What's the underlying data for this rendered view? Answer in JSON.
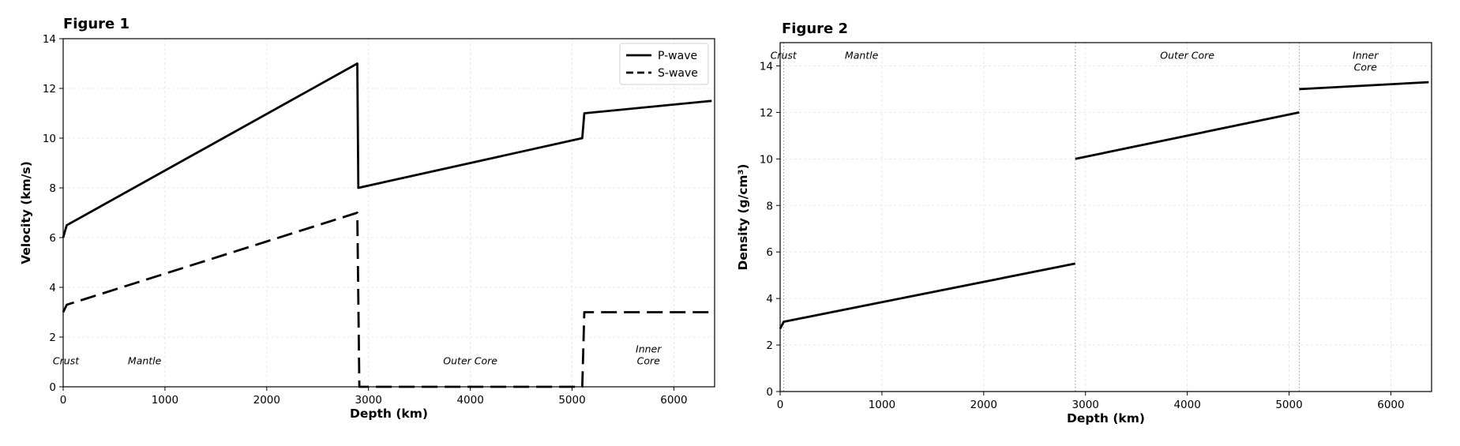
{
  "chart_data": [
    {
      "type": "line",
      "figure_title": "Figure 1",
      "xlabel": "Depth (km)",
      "ylabel": "Velocity (km/s)",
      "xlim": [
        0,
        6400
      ],
      "ylim": [
        0,
        14
      ],
      "xticks": [
        0,
        1000,
        2000,
        3000,
        4000,
        5000,
        6000
      ],
      "yticks": [
        0,
        2,
        4,
        6,
        8,
        10,
        12,
        14
      ],
      "grid": true,
      "legend_position": "top-right",
      "legend": [
        "P-wave",
        "S-wave"
      ],
      "series": [
        {
          "name": "P-wave",
          "style": "solid",
          "color": "#000000",
          "segments": [
            [
              [
                0,
                6.0
              ],
              [
                35,
                6.5
              ],
              [
                2890,
                13.0
              ],
              [
                2900,
                8.0
              ],
              [
                5100,
                10.0
              ],
              [
                5120,
                11.0
              ],
              [
                6371,
                11.5
              ]
            ]
          ]
        },
        {
          "name": "S-wave",
          "style": "dashed",
          "color": "#000000",
          "segments": [
            [
              [
                0,
                3.0
              ],
              [
                35,
                3.3
              ],
              [
                2890,
                7.0
              ],
              [
                2910,
                0.0
              ],
              [
                5100,
                0.0
              ],
              [
                5120,
                3.0
              ],
              [
                6371,
                3.0
              ]
            ]
          ]
        }
      ],
      "regions": [
        {
          "label": "Crust",
          "x": 15,
          "y": 0.9
        },
        {
          "label": "Mantle",
          "x": 800,
          "y": 0.9
        },
        {
          "label": "Outer Core",
          "x": 4000,
          "y": 0.9
        },
        {
          "label": "Inner\nCore",
          "x": 5750,
          "y": 0.9
        }
      ]
    },
    {
      "type": "line",
      "figure_title": "Figure 2",
      "xlabel": "Depth (km)",
      "ylabel": "Density (g/cm³)",
      "xlim": [
        0,
        6400
      ],
      "ylim": [
        0,
        15
      ],
      "xticks": [
        0,
        1000,
        2000,
        3000,
        4000,
        5000,
        6000
      ],
      "yticks": [
        0,
        2,
        4,
        6,
        8,
        10,
        12,
        14
      ],
      "grid": true,
      "boundaries": [
        35,
        2900,
        5100
      ],
      "series": [
        {
          "style": "solid",
          "color": "#000000",
          "segments": [
            [
              [
                0,
                2.7
              ],
              [
                35,
                3.0
              ],
              [
                2900,
                5.5
              ]
            ],
            [
              [
                2900,
                10.0
              ],
              [
                5100,
                12.0
              ]
            ],
            [
              [
                5100,
                13.0
              ],
              [
                6371,
                13.3
              ]
            ]
          ]
        }
      ],
      "regions": [
        {
          "label": "Crust",
          "x": 20,
          "y": 14.3
        },
        {
          "label": "Mantle",
          "x": 800,
          "y": 14.3
        },
        {
          "label": "Outer Core",
          "x": 4000,
          "y": 14.3
        },
        {
          "label": "Inner\nCore",
          "x": 5750,
          "y": 14.3
        }
      ]
    }
  ]
}
